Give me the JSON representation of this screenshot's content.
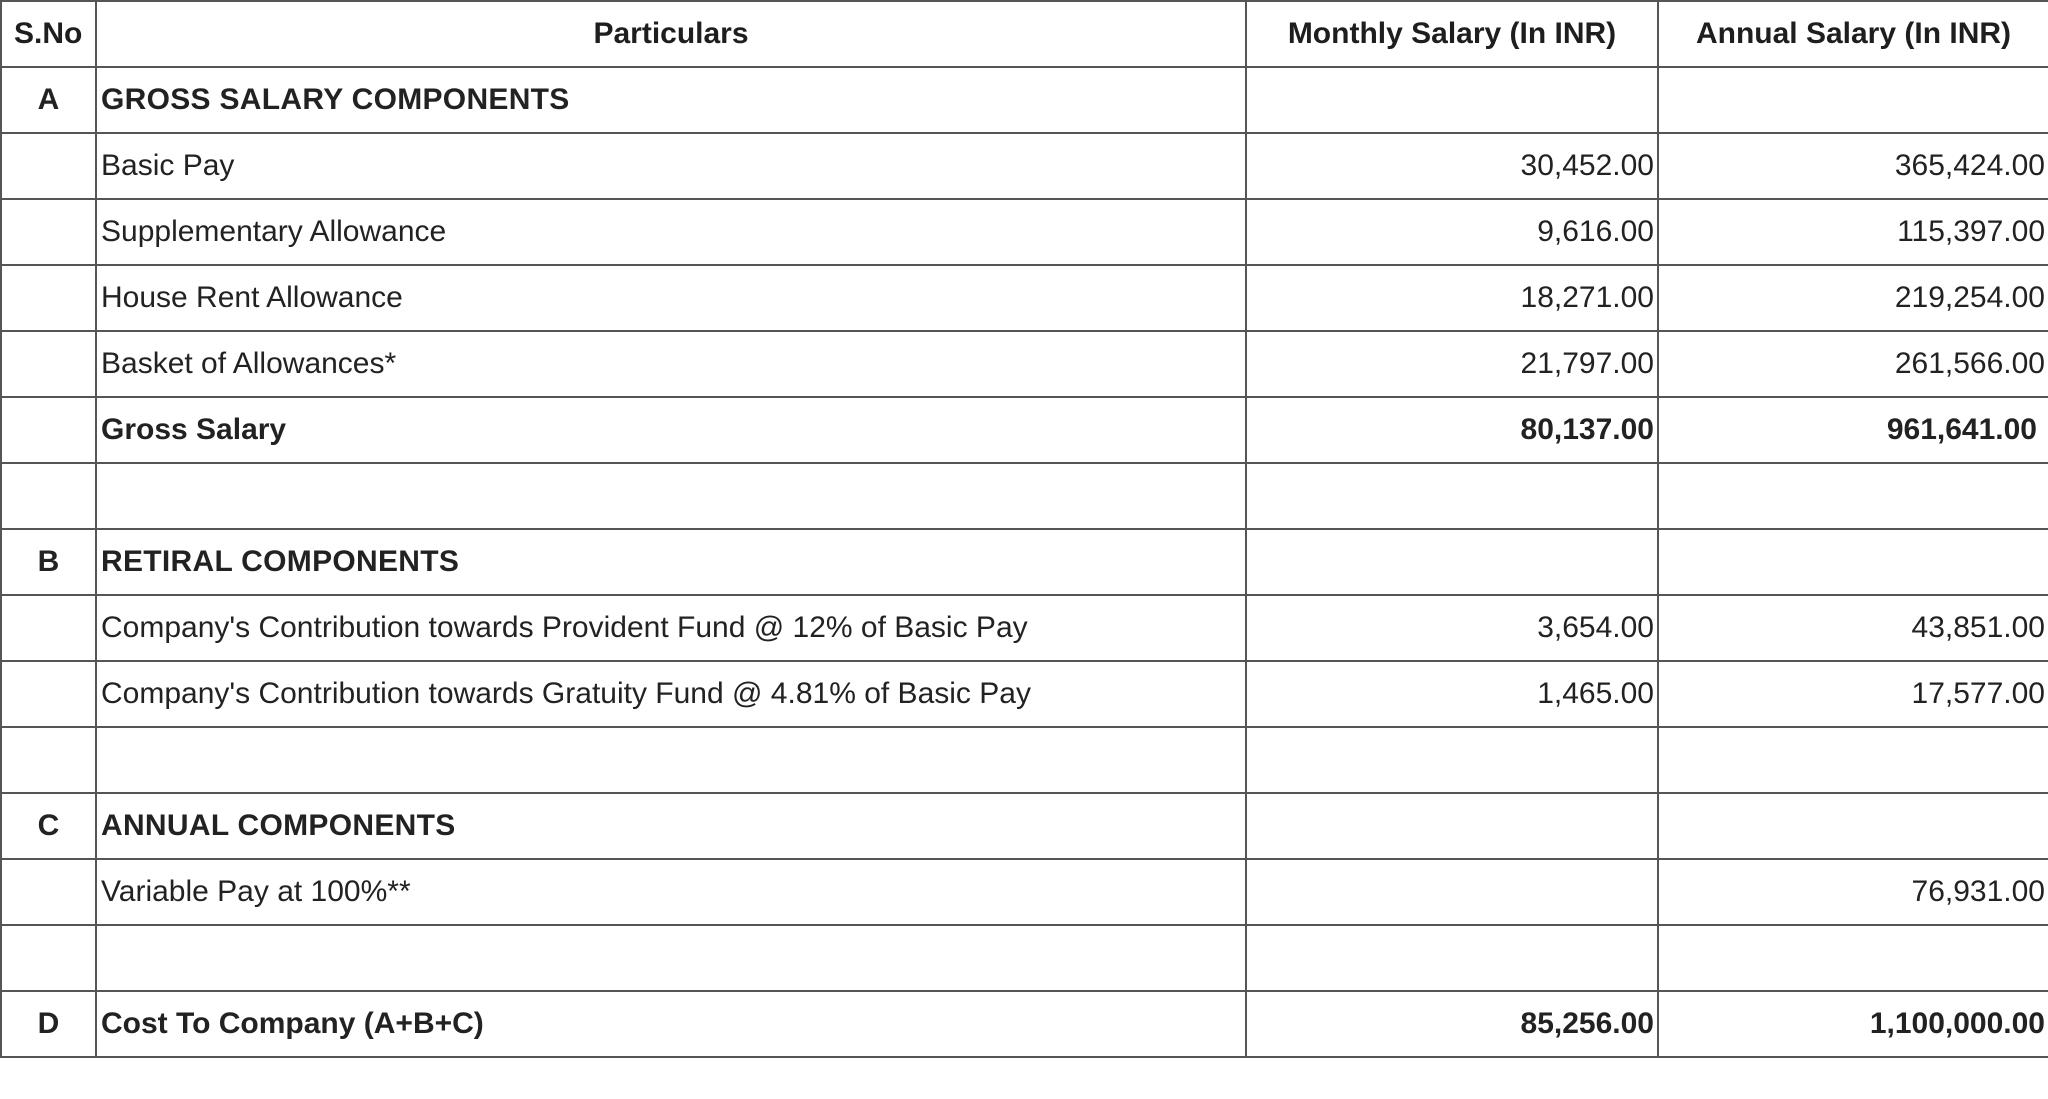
{
  "headers": {
    "sno": "S.No",
    "particulars": "Particulars",
    "monthly": "Monthly Salary (In INR)",
    "annual": "Annual Salary (In INR)"
  },
  "rows": [
    {
      "sno": "A",
      "particulars": "GROSS SALARY COMPONENTS",
      "monthly": "",
      "annual": ""
    },
    {
      "sno": "",
      "particulars": "Basic Pay",
      "monthly": "30,452.00",
      "annual": "365,424.00"
    },
    {
      "sno": "",
      "particulars": "Supplementary Allowance",
      "monthly": "9,616.00",
      "annual": "115,397.00"
    },
    {
      "sno": "",
      "particulars": "House Rent Allowance",
      "monthly": "18,271.00",
      "annual": "219,254.00"
    },
    {
      "sno": "",
      "particulars": "Basket of Allowances*",
      "monthly": "21,797.00",
      "annual": "261,566.00"
    },
    {
      "sno": "",
      "particulars": "Gross Salary",
      "monthly": "80,137.00",
      "annual": "961,641.00"
    },
    {
      "sno": "",
      "particulars": "",
      "monthly": "",
      "annual": ""
    },
    {
      "sno": "B",
      "particulars": "RETIRAL COMPONENTS",
      "monthly": "",
      "annual": ""
    },
    {
      "sno": "",
      "particulars": "Company's Contribution towards Provident Fund @ 12% of Basic Pay",
      "monthly": "3,654.00",
      "annual": "43,851.00"
    },
    {
      "sno": "",
      "particulars": "Company's Contribution towards Gratuity Fund @ 4.81% of Basic Pay",
      "monthly": "1,465.00",
      "annual": "17,577.00"
    },
    {
      "sno": "",
      "particulars": "",
      "monthly": "",
      "annual": ""
    },
    {
      "sno": "C",
      "particulars": "ANNUAL COMPONENTS",
      "monthly": "",
      "annual": ""
    },
    {
      "sno": "",
      "particulars": "Variable Pay at 100%**",
      "monthly": "",
      "annual": "76,931.00"
    },
    {
      "sno": "",
      "particulars": "",
      "monthly": "",
      "annual": ""
    },
    {
      "sno": "D",
      "particulars": "Cost To Company (A+B+C)",
      "monthly": "85,256.00",
      "annual": "1,100,000.00"
    }
  ]
}
